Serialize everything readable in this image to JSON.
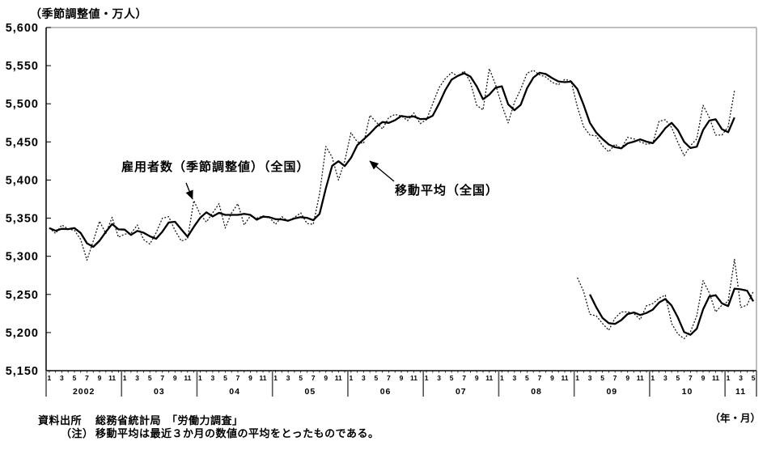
{
  "title_unit_label": "（季節調整値・万人）",
  "x_axis_unit_label": "（年・月）",
  "footer": {
    "source_label": "資料出所",
    "source_text": "総務省統計局　「労働力調査」",
    "note_label": "（注）",
    "note_text": "移動平均は最近３か月の数値の平均をとったものである。"
  },
  "chart_data": {
    "type": "line",
    "grid": false,
    "legend_position": "inline-annotations",
    "ylim": [
      5150,
      5600
    ],
    "ytick_interval": 50,
    "ytick_labels": [
      "5,600",
      "5,550",
      "5,500",
      "5,450",
      "5,400",
      "5,350",
      "5,300",
      "5,250",
      "5,200",
      "5,150"
    ],
    "years": [
      "2002",
      "03",
      "04",
      "05",
      "06",
      "07",
      "08",
      "09",
      "10",
      "11"
    ],
    "month_tick_labels": [
      "1",
      "3",
      "5",
      "7",
      "9",
      "11"
    ],
    "last_year_month_tick_labels": [
      "1",
      "3",
      "5"
    ],
    "months_total": 113,
    "annotations": [
      {
        "text": "雇用者数（季節調整値）（全国）",
        "points_to": "dotted monthly series, Dec 2003 peak"
      },
      {
        "text": "移動平均（全国）",
        "points_to": "solid moving-average series, early 2006"
      }
    ],
    "series": [
      {
        "id": "employees-national-monthly",
        "label": "雇用者数（季節調整値）（全国）",
        "line": "dotted",
        "start": "2002-01",
        "end": "2011-02",
        "start_month_index": 0,
        "values": [
          5337,
          5330,
          5341,
          5336,
          5334,
          5322,
          5295,
          5320,
          5346,
          5330,
          5351,
          5325,
          5329,
          5330,
          5341,
          5322,
          5316,
          5331,
          5350,
          5352,
          5334,
          5320,
          5323,
          5373,
          5355,
          5345,
          5357,
          5369,
          5337,
          5357,
          5369,
          5341,
          5353,
          5350,
          5353,
          5351,
          5342,
          5352,
          5346,
          5351,
          5357,
          5343,
          5342,
          5382,
          5444,
          5430,
          5400,
          5425,
          5462,
          5450,
          5448,
          5485,
          5476,
          5467,
          5482,
          5486,
          5484,
          5478,
          5488,
          5474,
          5479,
          5500,
          5521,
          5533,
          5541,
          5536,
          5543,
          5528,
          5498,
          5492,
          5546,
          5525,
          5498,
          5475,
          5502,
          5519,
          5540,
          5544,
          5538,
          5535,
          5528,
          5525,
          5532,
          5530,
          5496,
          5470,
          5459,
          5458,
          5445,
          5437,
          5447,
          5441,
          5456,
          5454,
          5450,
          5447,
          5448,
          5477,
          5479,
          5469,
          5449,
          5432,
          5445,
          5454,
          5498,
          5482,
          5459,
          5459,
          5470,
          5517
        ]
      },
      {
        "id": "employees-national-moving-average",
        "label": "移動平均（全国）",
        "line": "solid",
        "start": "2002-01",
        "end": "2011-02",
        "start_month_index": 0,
        "moving_average_of": "employees-national-monthly",
        "window": 3,
        "allow_partial_start": true
      },
      {
        "id": "employees-lower-segment-monthly",
        "label": "",
        "line": "dotted",
        "start": "2009-01",
        "end": "2011-05",
        "start_month_index": 84,
        "values": [
          5272,
          5254,
          5224,
          5222,
          5212,
          5203,
          5219,
          5227,
          5227,
          5225,
          5217,
          5235,
          5238,
          5245,
          5249,
          5212,
          5198,
          5192,
          5201,
          5222,
          5268,
          5252,
          5227,
          5236,
          5241,
          5296,
          5233,
          5236,
          5254
        ]
      },
      {
        "id": "employees-lower-segment-moving-average",
        "label": "",
        "line": "solid",
        "start": "2009-03",
        "end": "2011-05",
        "start_month_index": 84,
        "moving_average_of": "employees-lower-segment-monthly",
        "window": 3,
        "allow_partial_start": false
      }
    ]
  }
}
